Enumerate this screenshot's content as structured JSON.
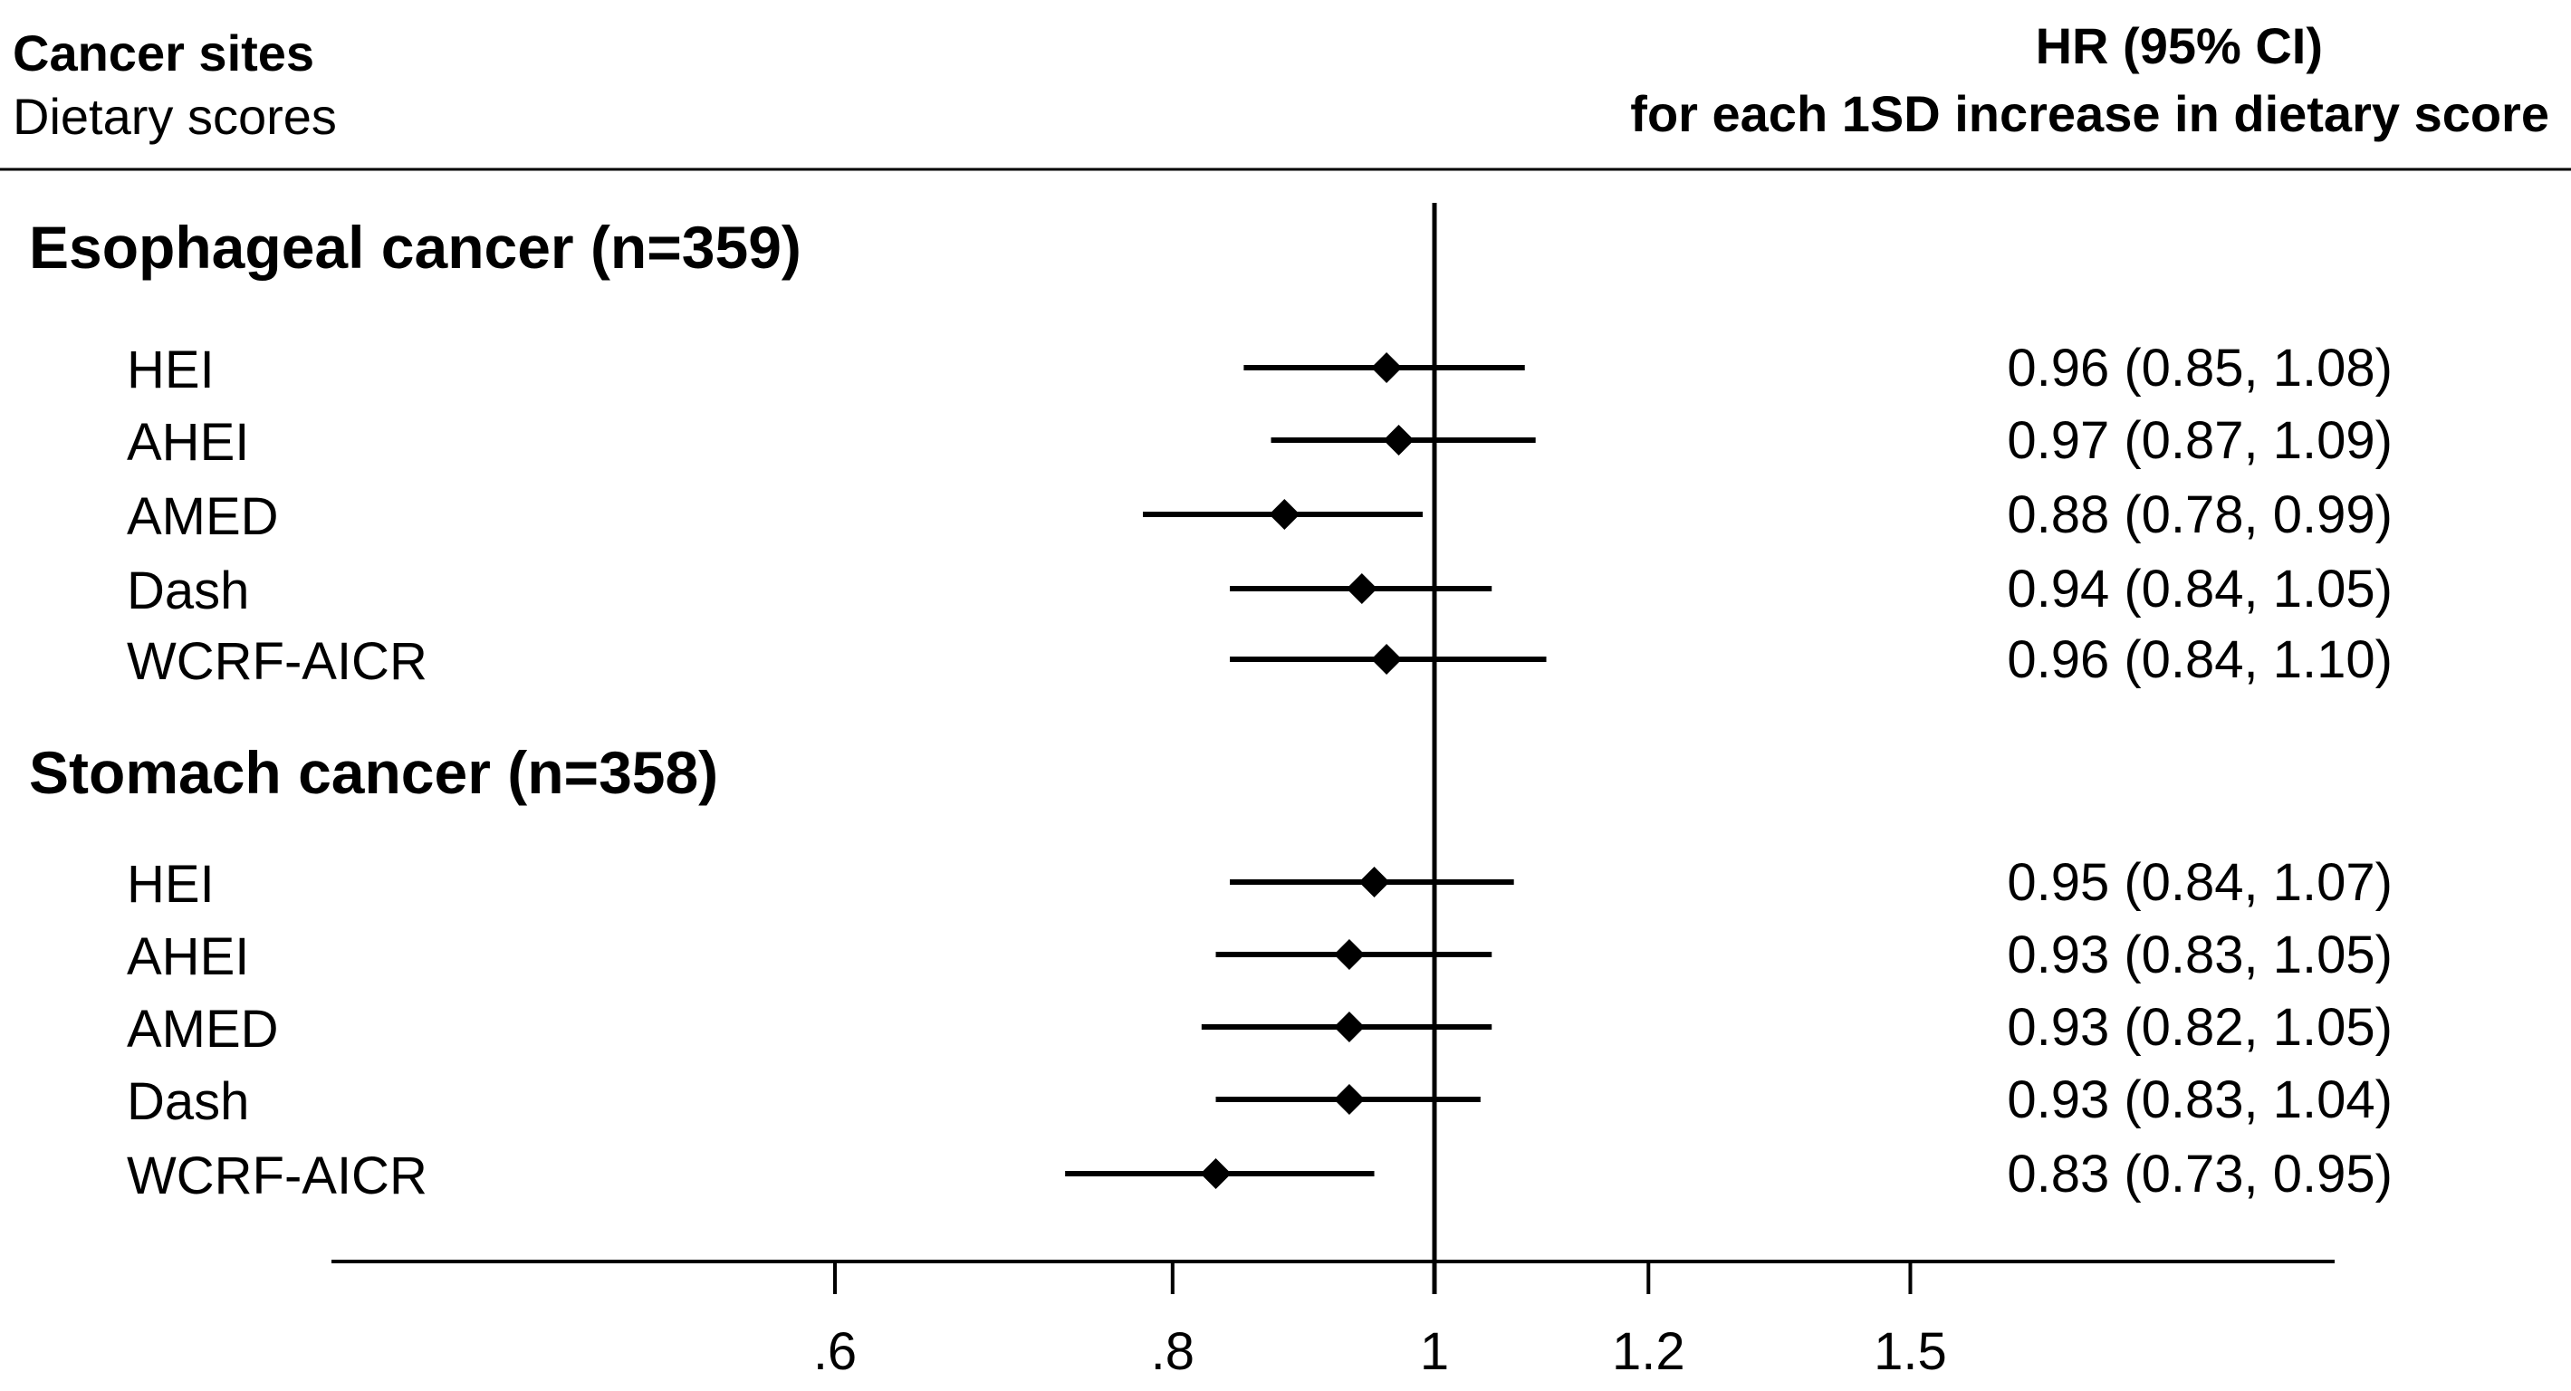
{
  "header": {
    "left_title": "Cancer sites",
    "left_subtitle": "Dietary scores",
    "right_title": "HR (95% CI)",
    "right_subtitle": "for each 1SD increase in dietary score"
  },
  "chart_data": {
    "type": "forest",
    "xscale": "log",
    "xlim": [
      0.5,
      2.25
    ],
    "reference_line": 1,
    "xticks": [
      0.6,
      0.8,
      1,
      1.2,
      1.5
    ],
    "xtick_labels": [
      ".6",
      ".8",
      "1",
      "1.2",
      "1.5"
    ],
    "groups": [
      {
        "name": "Esophageal cancer (n=359)",
        "rows": [
          {
            "label": "HEI",
            "hr": 0.96,
            "lo": 0.85,
            "hi": 1.08,
            "text": "0.96 (0.85, 1.08)"
          },
          {
            "label": "AHEI",
            "hr": 0.97,
            "lo": 0.87,
            "hi": 1.09,
            "text": "0.97 (0.87, 1.09)"
          },
          {
            "label": "AMED",
            "hr": 0.88,
            "lo": 0.78,
            "hi": 0.99,
            "text": "0.88 (0.78, 0.99)"
          },
          {
            "label": "Dash",
            "hr": 0.94,
            "lo": 0.84,
            "hi": 1.05,
            "text": "0.94 (0.84, 1.05)"
          },
          {
            "label": "WCRF-AICR",
            "hr": 0.96,
            "lo": 0.84,
            "hi": 1.1,
            "text": "0.96 (0.84, 1.10)"
          }
        ]
      },
      {
        "name": "Stomach cancer (n=358)",
        "rows": [
          {
            "label": "HEI",
            "hr": 0.95,
            "lo": 0.84,
            "hi": 1.07,
            "text": "0.95 (0.84, 1.07)"
          },
          {
            "label": "AHEI",
            "hr": 0.93,
            "lo": 0.83,
            "hi": 1.05,
            "text": "0.93 (0.83, 1.05)"
          },
          {
            "label": "AMED",
            "hr": 0.93,
            "lo": 0.82,
            "hi": 1.05,
            "text": "0.93 (0.82, 1.05)"
          },
          {
            "label": "Dash",
            "hr": 0.93,
            "lo": 0.83,
            "hi": 1.04,
            "text": "0.93 (0.83, 1.04)"
          },
          {
            "label": "WCRF-AICR",
            "hr": 0.83,
            "lo": 0.73,
            "hi": 0.95,
            "text": "0.83 (0.73, 0.95)"
          }
        ]
      }
    ]
  }
}
